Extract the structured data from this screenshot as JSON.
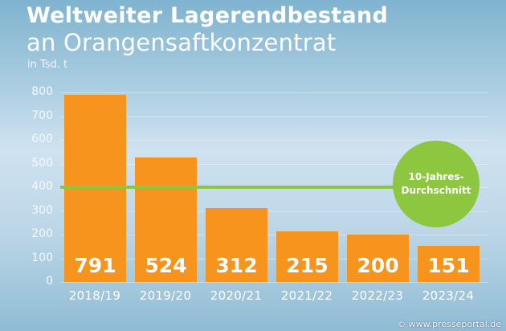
{
  "header": {
    "title": "Weltweiter Lagerendbestand",
    "subtitle": "an Orangensaftkonzentrat",
    "unit": "in Tsd. t"
  },
  "average_label": {
    "line1": "10-Jahres-",
    "line2": "Durchschnitt"
  },
  "credit": "© www.presseportal.de",
  "colors": {
    "bar": "#f7941d",
    "average": "#8dc63f",
    "text": "#ffffff"
  },
  "yticks": [
    "800",
    "700",
    "600",
    "500",
    "400",
    "300",
    "200",
    "100",
    "0"
  ],
  "chart_data": {
    "type": "bar",
    "title": "Weltweiter Lagerendbestand an Orangensaftkonzentrat",
    "subtitle": "in Tsd. t",
    "xlabel": "",
    "ylabel": "in Tsd. t",
    "categories": [
      "2018/19",
      "2019/20",
      "2020/21",
      "2021/22",
      "2022/23",
      "2023/24"
    ],
    "values": [
      791,
      524,
      312,
      215,
      200,
      151
    ],
    "value_labels": [
      "791",
      "524",
      "312",
      "215",
      "200",
      "151"
    ],
    "ylim": [
      0,
      800
    ],
    "yticks": [
      0,
      100,
      200,
      300,
      400,
      500,
      600,
      700,
      800
    ],
    "grid": true,
    "reference_line": {
      "label": "10-Jahres-Durchschnitt",
      "value": 400
    },
    "legend": "none"
  }
}
